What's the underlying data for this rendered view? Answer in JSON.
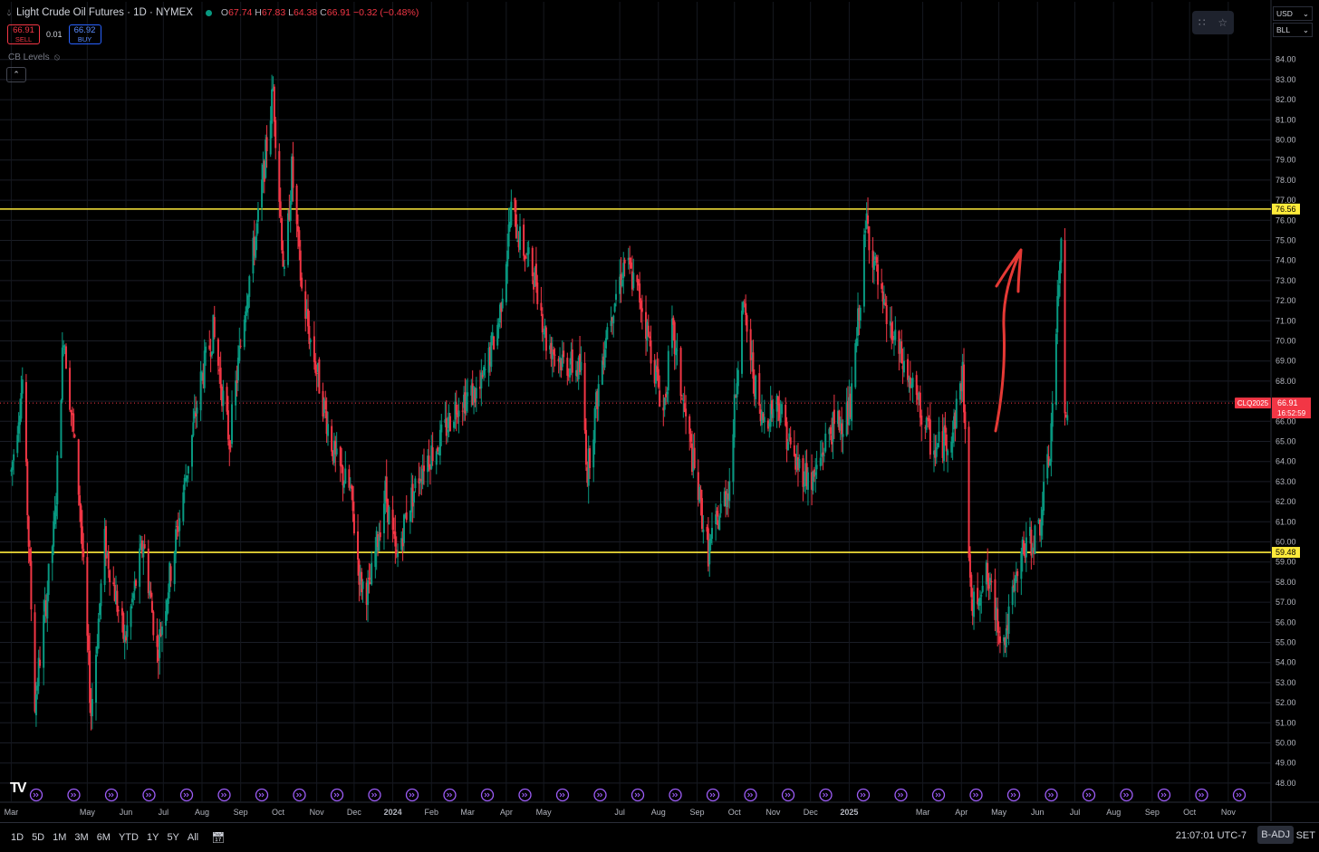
{
  "header": {
    "title": "Light Crude Oil Futures · 1D · NYMEX",
    "ohlc": {
      "o_label": "O",
      "o": "67.74",
      "h_label": "H",
      "h": "67.83",
      "l_label": "L",
      "l": "64.38",
      "c_label": "C",
      "c": "66.91",
      "change": "−0.32 (−0.48%)"
    },
    "sell_price": "66.91",
    "sell_label": "SELL",
    "spread": "0.01",
    "buy_price": "66.92",
    "buy_label": "BUY",
    "indicator": "CB Levels",
    "collapse_icon": "chevron-up-icon"
  },
  "top_right": {
    "currency": "USD",
    "unit": "BLL"
  },
  "chart_data": {
    "type": "candlestick",
    "x_ticks": [
      "Mar",
      "May",
      "Jun",
      "Jul",
      "Aug",
      "Sep",
      "Oct",
      "Nov",
      "Dec",
      "2024",
      "Feb",
      "Mar",
      "Apr",
      "May",
      "Jul",
      "Aug",
      "Sep",
      "Oct",
      "Nov",
      "Dec",
      "2025",
      "Mar",
      "Apr",
      "May",
      "Jun",
      "Jul",
      "Aug",
      "Sep",
      "Oct",
      "Nov"
    ],
    "y_ticks": [
      "48.00",
      "49.00",
      "50.00",
      "51.00",
      "52.00",
      "53.00",
      "54.00",
      "55.00",
      "56.00",
      "57.00",
      "58.00",
      "59.00",
      "60.00",
      "61.00",
      "62.00",
      "63.00",
      "64.00",
      "65.00",
      "66.00",
      "67.00",
      "68.00",
      "69.00",
      "70.00",
      "71.00",
      "72.00",
      "73.00",
      "74.00",
      "75.00",
      "76.00",
      "77.00",
      "78.00",
      "79.00",
      "80.00",
      "81.00",
      "82.00",
      "83.00",
      "84.00"
    ],
    "ylim": [
      47.5,
      84.5
    ],
    "anchors": [
      [
        "2023-03-01",
        63.5
      ],
      [
        "2023-03-10",
        68.0
      ],
      [
        "2023-03-20",
        52.0
      ],
      [
        "2023-04-05",
        61.0
      ],
      [
        "2023-04-12",
        70.5
      ],
      [
        "2023-04-25",
        62.0
      ],
      [
        "2023-05-04",
        51.5
      ],
      [
        "2023-05-15",
        60.0
      ],
      [
        "2023-05-31",
        55.0
      ],
      [
        "2023-06-15",
        60.0
      ],
      [
        "2023-06-26",
        54.5
      ],
      [
        "2023-07-12",
        60.5
      ],
      [
        "2023-07-31",
        68.0
      ],
      [
        "2023-08-10",
        70.5
      ],
      [
        "2023-08-23",
        65.0
      ],
      [
        "2023-09-05",
        72.0
      ],
      [
        "2023-09-15",
        76.0
      ],
      [
        "2023-09-27",
        82.5
      ],
      [
        "2023-10-06",
        73.0
      ],
      [
        "2023-10-12",
        78.5
      ],
      [
        "2023-10-20",
        72.5
      ],
      [
        "2023-10-27",
        70.0
      ],
      [
        "2023-11-16",
        64.0
      ],
      [
        "2023-11-28",
        62.5
      ],
      [
        "2023-12-06",
        58.0
      ],
      [
        "2023-12-13",
        57.5
      ],
      [
        "2023-12-26",
        62.5
      ],
      [
        "2024-01-04",
        59.0
      ],
      [
        "2024-01-12",
        61.5
      ],
      [
        "2024-01-26",
        64.0
      ],
      [
        "2024-02-08",
        65.0
      ],
      [
        "2024-02-22",
        67.0
      ],
      [
        "2024-03-11",
        67.5
      ],
      [
        "2024-03-26",
        71.0
      ],
      [
        "2024-04-05",
        76.5
      ],
      [
        "2024-04-12",
        75.0
      ],
      [
        "2024-04-25",
        73.0
      ],
      [
        "2024-05-03",
        70.0
      ],
      [
        "2024-05-16",
        69.0
      ],
      [
        "2024-05-31",
        68.5
      ],
      [
        "2024-06-05",
        63.5
      ],
      [
        "2024-06-20",
        70.5
      ],
      [
        "2024-07-05",
        74.0
      ],
      [
        "2024-07-18",
        72.0
      ],
      [
        "2024-08-05",
        66.5
      ],
      [
        "2024-08-12",
        70.5
      ],
      [
        "2024-08-23",
        66.0
      ],
      [
        "2024-09-10",
        59.5
      ],
      [
        "2024-09-27",
        63.0
      ],
      [
        "2024-10-07",
        72.0
      ],
      [
        "2024-10-22",
        66.0
      ],
      [
        "2024-11-05",
        67.0
      ],
      [
        "2024-11-18",
        64.0
      ],
      [
        "2024-12-03",
        63.0
      ],
      [
        "2024-12-16",
        65.5
      ],
      [
        "2025-01-02",
        66.5
      ],
      [
        "2025-01-15",
        76.0
      ],
      [
        "2025-01-28",
        71.5
      ],
      [
        "2025-02-12",
        69.0
      ],
      [
        "2025-02-27",
        66.5
      ],
      [
        "2025-03-10",
        64.5
      ],
      [
        "2025-03-25",
        65.5
      ],
      [
        "2025-04-02",
        68.5
      ],
      [
        "2025-04-09",
        56.5
      ],
      [
        "2025-04-20",
        58.5
      ],
      [
        "2025-05-05",
        55.0
      ],
      [
        "2025-05-20",
        59.5
      ],
      [
        "2025-06-02",
        60.5
      ],
      [
        "2025-06-11",
        64.5
      ],
      [
        "2025-06-20",
        75.0
      ],
      [
        "2025-06-23",
        67.0
      ],
      [
        "2025-06-25",
        66.91
      ]
    ],
    "last_price": "66.91",
    "countdown": "16:52:59",
    "symbol": "CLQ2025",
    "levels": [
      {
        "value": 76.56,
        "label": "76.56"
      },
      {
        "value": 59.48,
        "label": "59.48"
      }
    ],
    "colors": {
      "up": "#089981",
      "down": "#f23645",
      "level": "#ffeb3b",
      "annotation": "#e53935"
    }
  },
  "toolbar": {
    "ranges": [
      "1D",
      "5D",
      "1M",
      "3M",
      "6M",
      "YTD",
      "1Y",
      "5Y",
      "All"
    ],
    "time": "21:07:01 UTC-7",
    "b_adj": "B-ADJ",
    "session": "SET",
    "calendar_icon": "calendar-icon",
    "logo": "TV"
  }
}
